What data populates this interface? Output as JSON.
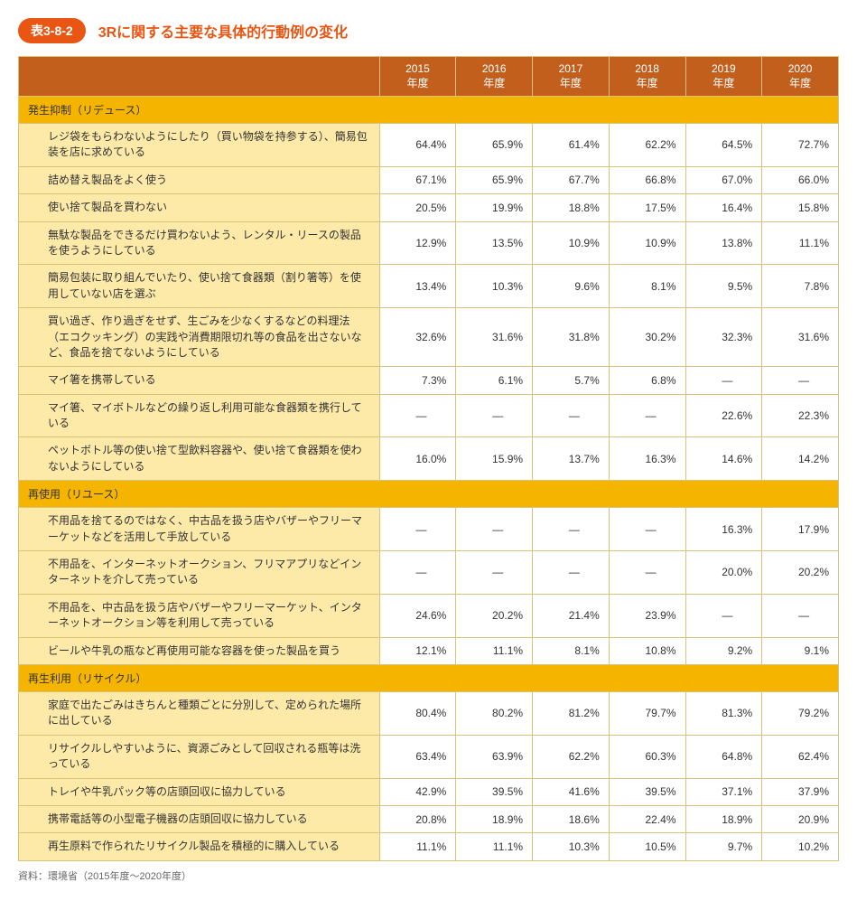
{
  "title": {
    "badge": "表3-8-2",
    "text": "3Rに関する主要な具体的行動例の変化"
  },
  "years": [
    "2015\n年度",
    "2016\n年度",
    "2017\n年度",
    "2018\n年度",
    "2019\n年度",
    "2020\n年度"
  ],
  "sections": [
    {
      "name": "発生抑制（リデュース）",
      "rows": [
        {
          "label": "レジ袋をもらわないようにしたり（買い物袋を持参する）、簡易包装を店に求めている",
          "v": [
            "64.4%",
            "65.9%",
            "61.4%",
            "62.2%",
            "64.5%",
            "72.7%"
          ]
        },
        {
          "label": "詰め替え製品をよく使う",
          "v": [
            "67.1%",
            "65.9%",
            "67.7%",
            "66.8%",
            "67.0%",
            "66.0%"
          ]
        },
        {
          "label": "使い捨て製品を買わない",
          "v": [
            "20.5%",
            "19.9%",
            "18.8%",
            "17.5%",
            "16.4%",
            "15.8%"
          ]
        },
        {
          "label": "無駄な製品をできるだけ買わないよう、レンタル・リースの製品を使うようにしている",
          "v": [
            "12.9%",
            "13.5%",
            "10.9%",
            "10.9%",
            "13.8%",
            "11.1%"
          ]
        },
        {
          "label": "簡易包装に取り組んでいたり、使い捨て食器類（割り箸等）を使用していない店を選ぶ",
          "v": [
            "13.4%",
            "10.3%",
            "9.6%",
            "8.1%",
            "9.5%",
            "7.8%"
          ]
        },
        {
          "label": "買い過ぎ、作り過ぎをせず、生ごみを少なくするなどの料理法（エコクッキング）の実践や消費期限切れ等の食品を出さないなど、食品を捨てないようにしている",
          "v": [
            "32.6%",
            "31.6%",
            "31.8%",
            "30.2%",
            "32.3%",
            "31.6%"
          ]
        },
        {
          "label": "マイ箸を携帯している",
          "v": [
            "7.3%",
            "6.1%",
            "5.7%",
            "6.8%",
            "—",
            "—"
          ]
        },
        {
          "label": "マイ箸、マイボトルなどの繰り返し利用可能な食器類を携行している",
          "v": [
            "—",
            "—",
            "—",
            "—",
            "22.6%",
            "22.3%"
          ]
        },
        {
          "label": "ペットボトル等の使い捨て型飲料容器や、使い捨て食器類を使わないようにしている",
          "v": [
            "16.0%",
            "15.9%",
            "13.7%",
            "16.3%",
            "14.6%",
            "14.2%"
          ]
        }
      ]
    },
    {
      "name": "再使用（リユース）",
      "rows": [
        {
          "label": "不用品を捨てるのではなく、中古品を扱う店やバザーやフリーマーケットなどを活用して手放している",
          "v": [
            "—",
            "—",
            "—",
            "—",
            "16.3%",
            "17.9%"
          ]
        },
        {
          "label": "不用品を、インターネットオークション、フリマアプリなどインターネットを介して売っている",
          "v": [
            "—",
            "—",
            "—",
            "—",
            "20.0%",
            "20.2%"
          ]
        },
        {
          "label": "不用品を、中古品を扱う店やバザーやフリーマーケット、インターネットオークション等を利用して売っている",
          "v": [
            "24.6%",
            "20.2%",
            "21.4%",
            "23.9%",
            "—",
            "—"
          ]
        },
        {
          "label": "ビールや牛乳の瓶など再使用可能な容器を使った製品を買う",
          "v": [
            "12.1%",
            "11.1%",
            "8.1%",
            "10.8%",
            "9.2%",
            "9.1%"
          ]
        }
      ]
    },
    {
      "name": "再生利用（リサイクル）",
      "rows": [
        {
          "label": "家庭で出たごみはきちんと種類ごとに分別して、定められた場所に出している",
          "v": [
            "80.4%",
            "80.2%",
            "81.2%",
            "79.7%",
            "81.3%",
            "79.2%"
          ]
        },
        {
          "label": "リサイクルしやすいように、資源ごみとして回収される瓶等は洗っている",
          "v": [
            "63.4%",
            "63.9%",
            "62.2%",
            "60.3%",
            "64.8%",
            "62.4%"
          ]
        },
        {
          "label": "トレイや牛乳パック等の店頭回収に協力している",
          "v": [
            "42.9%",
            "39.5%",
            "41.6%",
            "39.5%",
            "37.1%",
            "37.9%"
          ]
        },
        {
          "label": "携帯電話等の小型電子機器の店頭回収に協力している",
          "v": [
            "20.8%",
            "18.9%",
            "18.6%",
            "22.4%",
            "18.9%",
            "20.9%"
          ]
        },
        {
          "label": "再生原料で作られたリサイクル製品を積極的に購入している",
          "v": [
            "11.1%",
            "11.1%",
            "10.3%",
            "10.5%",
            "9.7%",
            "10.2%"
          ]
        }
      ]
    }
  ],
  "source": "資料：環境省（2015年度～2020年度）",
  "colors": {
    "header_bg": "#c25f1d",
    "section_bg": "#f5b400",
    "row_label_bg": "#fde9a8",
    "border": "#d9c27a",
    "accent": "#e95513"
  }
}
